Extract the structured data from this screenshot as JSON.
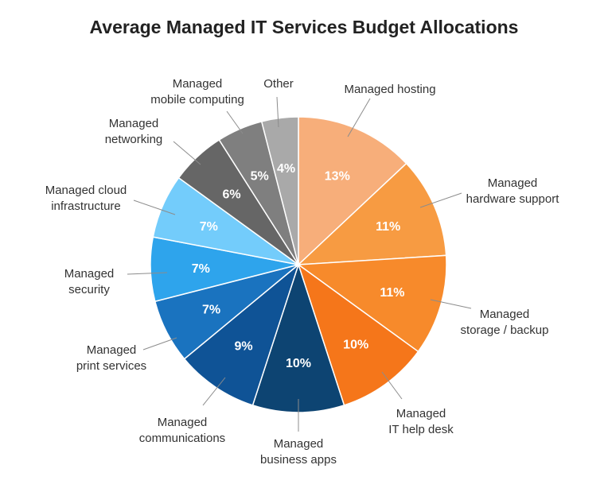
{
  "chart_data": {
    "type": "pie",
    "title": "Average Managed IT Services Budget Allocations",
    "slices": [
      {
        "label": [
          "Managed hosting"
        ],
        "value": 13,
        "display": "13%",
        "color": "#f7ae7a"
      },
      {
        "label": [
          "Managed",
          "hardware support"
        ],
        "value": 11,
        "display": "11%",
        "color": "#f79b42"
      },
      {
        "label": [
          "Managed",
          "storage / backup"
        ],
        "value": 11,
        "display": "11%",
        "color": "#f78a2b"
      },
      {
        "label": [
          "Managed",
          "IT help desk"
        ],
        "value": 10,
        "display": "10%",
        "color": "#f5761a"
      },
      {
        "label": [
          "Managed",
          "business apps"
        ],
        "value": 10,
        "display": "10%",
        "color": "#0d4472"
      },
      {
        "label": [
          "Managed",
          "communications"
        ],
        "value": 9,
        "display": "9%",
        "color": "#0f5396"
      },
      {
        "label": [
          "Managed",
          "print services"
        ],
        "value": 7,
        "display": "7%",
        "color": "#1a73bf"
      },
      {
        "label": [
          "Managed",
          "security"
        ],
        "value": 7,
        "display": "7%",
        "color": "#2ea4ec"
      },
      {
        "label": [
          "Managed cloud",
          "infrastructure"
        ],
        "value": 7,
        "display": "7%",
        "color": "#73ccfb"
      },
      {
        "label": [
          "Managed",
          "networking"
        ],
        "value": 6,
        "display": "6%",
        "color": "#666666"
      },
      {
        "label": [
          "Managed",
          "mobile computing"
        ],
        "value": 5,
        "display": "5%",
        "color": "#7f7f7f"
      },
      {
        "label": [
          "Other"
        ],
        "value": 4,
        "display": "4%",
        "color": "#a9a9a9"
      }
    ]
  }
}
